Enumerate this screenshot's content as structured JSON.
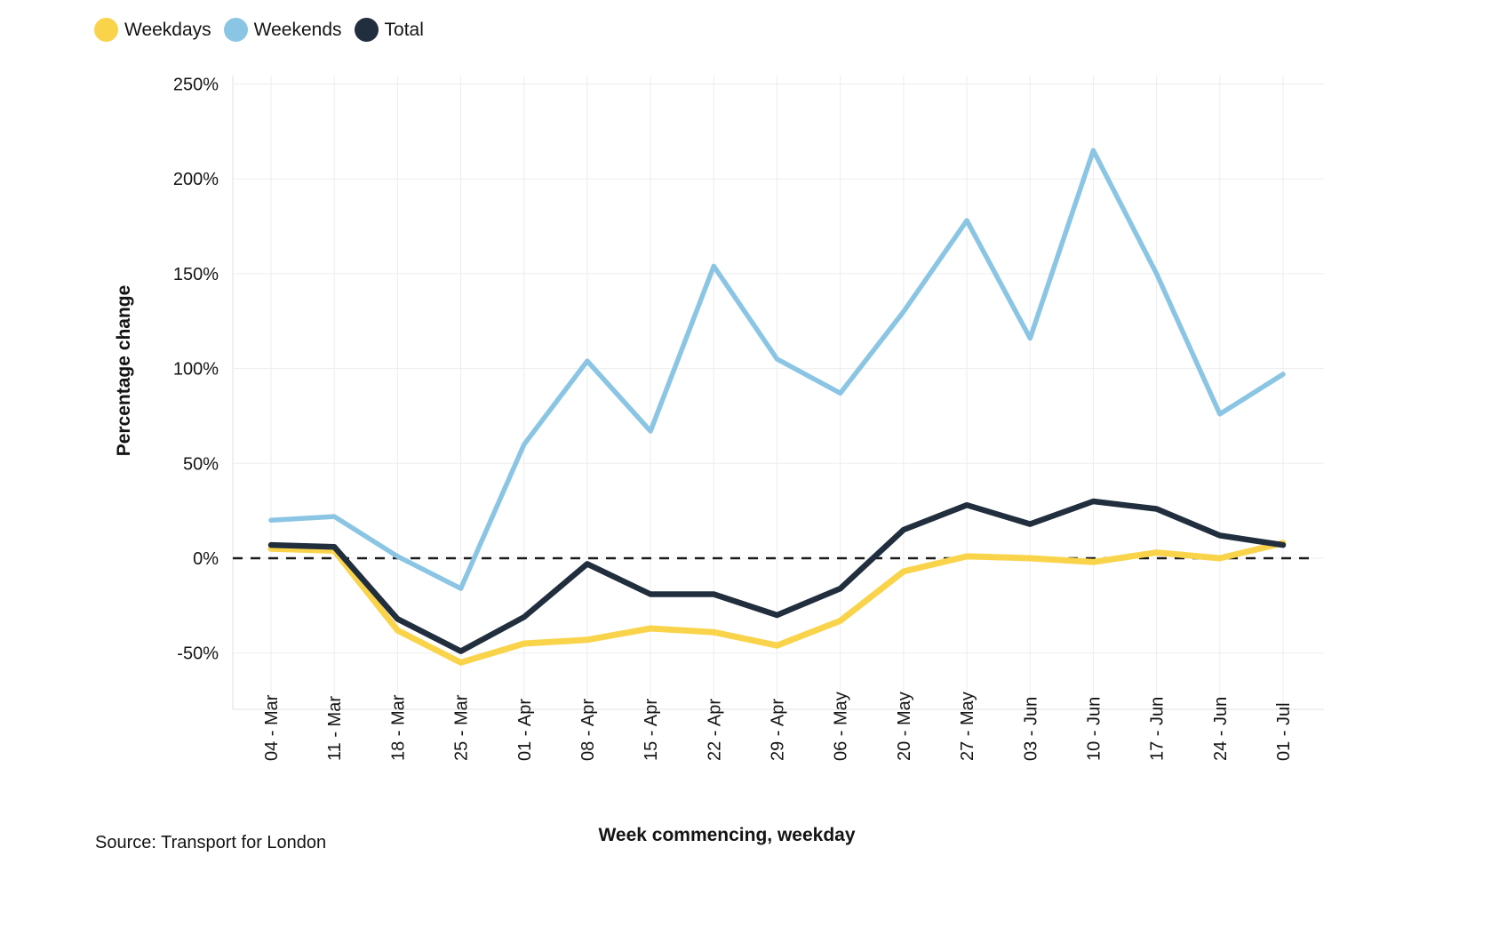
{
  "source": "Source: Transport for London",
  "chart_data": {
    "type": "line",
    "title": "",
    "xlabel": "Week commencing, weekday",
    "ylabel": "Percentage change",
    "categories": [
      "04 - Mar",
      "11 - Mar",
      "18 - Mar",
      "25 - Mar",
      "01 - Apr",
      "08 - Apr",
      "15 - Apr",
      "22 - Apr",
      "29 - Apr",
      "06 - May",
      "20 - May",
      "27 - May",
      "03 - Jun",
      "10 - Jun",
      "17 - Jun",
      "24 - Jun",
      "01 - Jul"
    ],
    "series": [
      {
        "name": "Weekdays",
        "color": "#F9D44B",
        "values": [
          5,
          4,
          -38,
          -55,
          -45,
          -43,
          -37,
          -39,
          -46,
          -33,
          -7,
          1,
          0,
          -2,
          3,
          0,
          8
        ]
      },
      {
        "name": "Weekends",
        "color": "#8BC5E4",
        "values": [
          20,
          22,
          1,
          -16,
          60,
          104,
          67,
          154,
          105,
          87,
          130,
          178,
          116,
          215,
          150,
          76,
          97
        ]
      },
      {
        "name": "Total",
        "color": "#212E3E",
        "values": [
          7,
          6,
          -32,
          -49,
          -31,
          -3,
          -19,
          -19,
          -30,
          -16,
          15,
          28,
          18,
          30,
          26,
          12,
          7
        ]
      }
    ],
    "yticks": [
      {
        "label": "250%",
        "value": 250
      },
      {
        "label": "200%",
        "value": 200
      },
      {
        "label": "150%",
        "value": 150
      },
      {
        "label": "100%",
        "value": 100
      },
      {
        "label": "50%",
        "value": 50
      },
      {
        "label": "0%",
        "value": 0
      },
      {
        "label": "-50%",
        "value": -50
      }
    ],
    "ylim": [
      -79,
      255
    ],
    "zero_line": {
      "value": 0,
      "style": "dashed",
      "color": "#1a1a1a"
    },
    "grid": true,
    "legend_position": "top-left",
    "colors": {
      "grid": "#ededed",
      "border": "#e2e2e2",
      "text": "#141414"
    }
  }
}
